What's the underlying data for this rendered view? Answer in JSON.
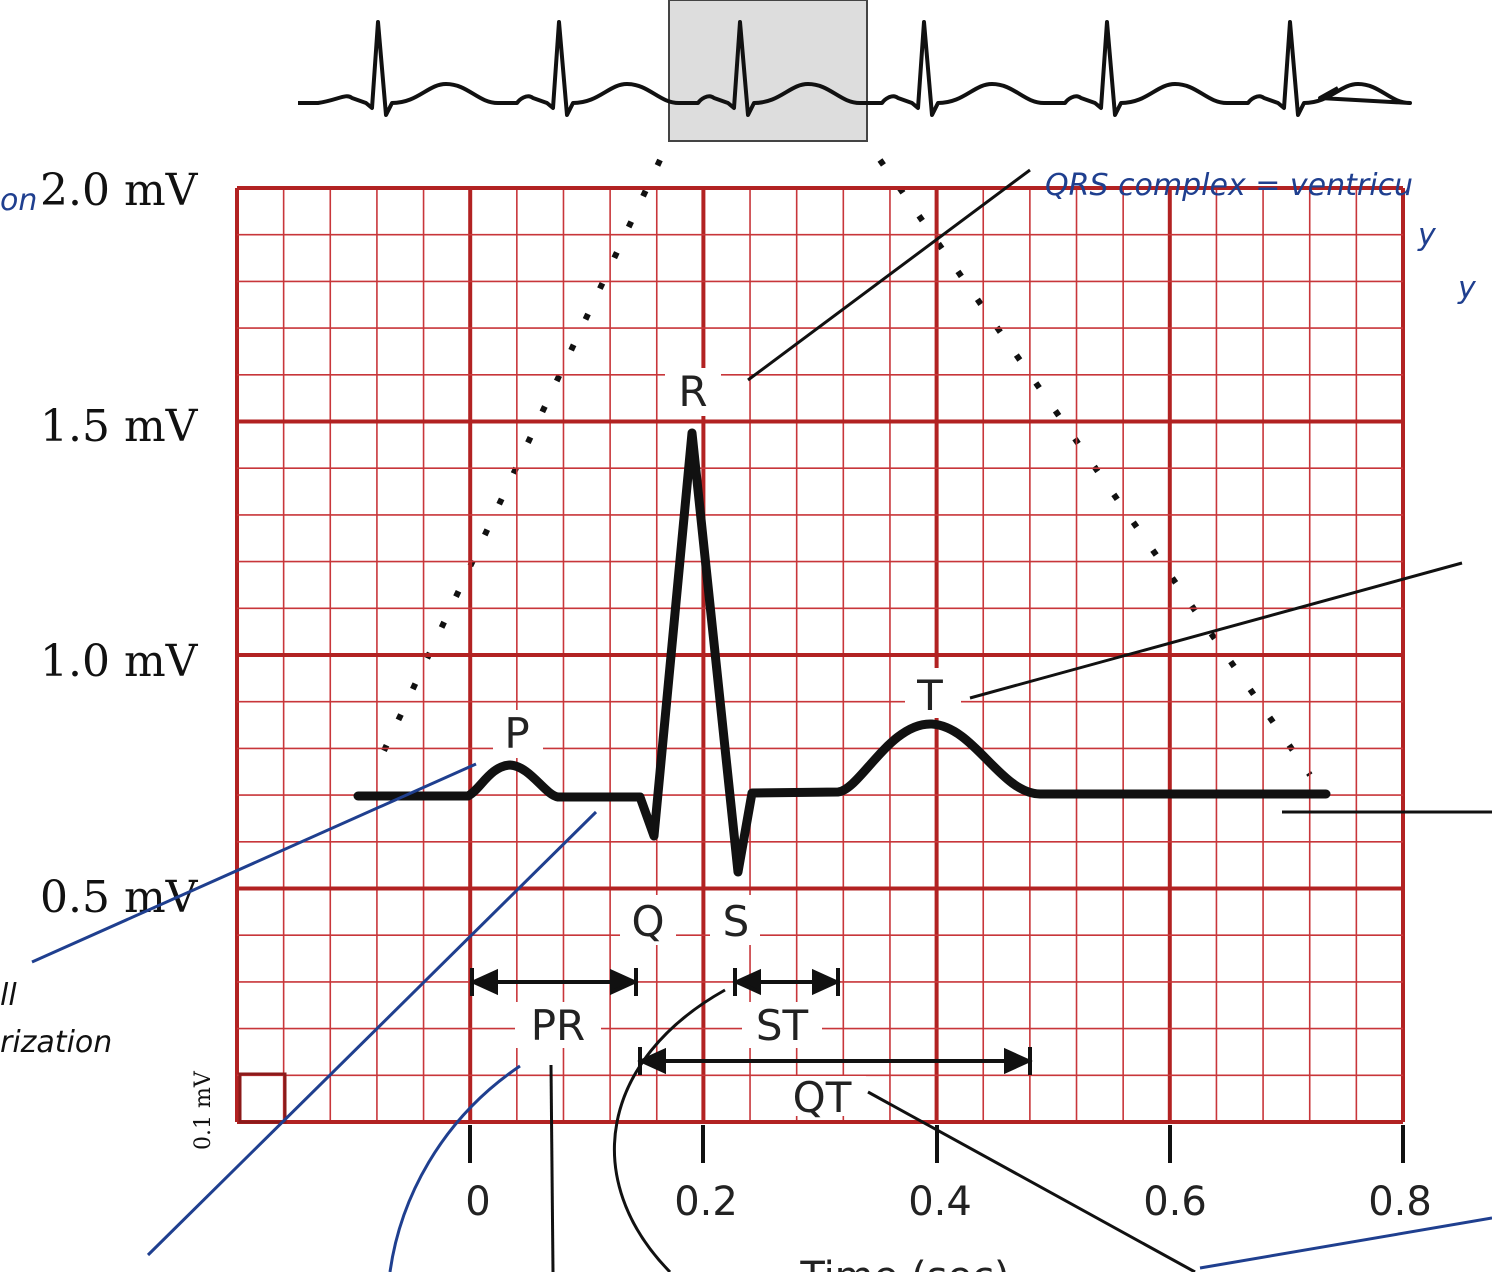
{
  "y_axis_labels": [
    "2.0 mV",
    "1.5 mV",
    "1.0 mV",
    "0.5 mV"
  ],
  "x_axis_ticks": [
    "0",
    "0.2",
    "0.4",
    "0.6",
    "0.8"
  ],
  "x_axis_title": "Time (sec)",
  "wave_labels": {
    "p": "P",
    "q": "Q",
    "r": "R",
    "s": "S",
    "t": "T"
  },
  "interval_labels": {
    "pr": "PR",
    "st": "ST",
    "qt": "QT"
  },
  "scale_box_label": "0.1 mV",
  "handwritten": {
    "qrs_note": "QRS complex = ventricu",
    "left_note_top": "on",
    "left_note_bottom_1": "ll",
    "left_note_bottom_2": "rization",
    "right_note_1": "y",
    "right_note_2": "y"
  },
  "colors": {
    "grid_major": "#b22222",
    "grid_minor": "#c8363a",
    "trace": "#111111",
    "annotation_blue": "#1f3f8f",
    "highlight_box": "#dddddd"
  }
}
